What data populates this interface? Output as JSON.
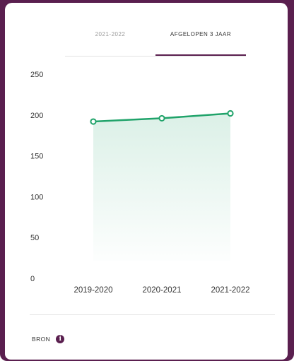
{
  "tabs": [
    {
      "label": "2021-2022",
      "active": false
    },
    {
      "label": "AFGELOPEN 3 JAAR",
      "active": true
    }
  ],
  "source": {
    "label": "BRON",
    "icon": "info-icon"
  },
  "colors": {
    "accent": "#5a1f4f",
    "line": "#20a36a",
    "fill": "#e6f5ed"
  },
  "chart_data": {
    "type": "area",
    "categories": [
      "2019-2020",
      "2020-2021",
      "2021-2022"
    ],
    "series": [
      {
        "values": [
          192,
          196,
          202
        ]
      }
    ],
    "yticks": [
      "0",
      "50",
      "100",
      "150",
      "200",
      "250"
    ],
    "ylim": [
      0,
      250
    ],
    "grid": false,
    "legend": "none"
  }
}
